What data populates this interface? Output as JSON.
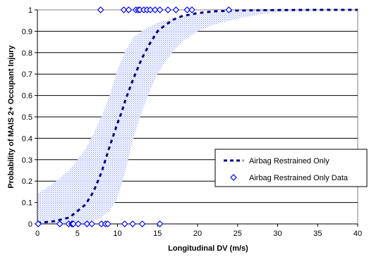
{
  "chart_data": {
    "type": "line",
    "title": "",
    "xlabel": "Longitudinal DV (m/s)",
    "ylabel": "Probability of MAIS 2+ Occupant Injury",
    "xlim": [
      0,
      40
    ],
    "ylim": [
      0,
      1
    ],
    "x_ticks": [
      "0",
      "5",
      "10",
      "15",
      "20",
      "25",
      "30",
      "35",
      "40"
    ],
    "y_ticks": [
      "0",
      "0.1",
      "0.2",
      "0.3",
      "0.4",
      "0.5",
      "0.6",
      "0.7",
      "0.8",
      "0.9",
      "1"
    ],
    "grid": "horizontal",
    "legend_position": "center-right",
    "colors": {
      "line": "#000080",
      "points": "#0000ff",
      "band": "#8fa0ff"
    },
    "series": [
      {
        "name": "Airbag Restrained Only",
        "style": "dashed-line",
        "x": [
          0,
          2,
          4,
          6,
          7,
          8,
          9,
          10,
          10.5,
          11,
          11.5,
          12,
          13,
          14,
          15,
          16,
          17,
          18,
          20,
          22,
          25,
          30,
          35,
          40
        ],
        "y": [
          0.005,
          0.012,
          0.03,
          0.09,
          0.15,
          0.24,
          0.36,
          0.47,
          0.52,
          0.58,
          0.63,
          0.68,
          0.77,
          0.84,
          0.9,
          0.93,
          0.955,
          0.97,
          0.985,
          0.993,
          0.997,
          0.999,
          1,
          1
        ]
      },
      {
        "name": "Airbag Restrained Only Data",
        "style": "markers",
        "x": [
          7.9,
          10.8,
          11.4,
          12.3,
          12.6,
          12.8,
          13.3,
          13.7,
          14.1,
          14.7,
          15.3,
          16.3,
          17.3,
          18.7,
          19.3,
          23.9,
          0.1,
          2.8,
          3.9,
          4.3,
          4.4,
          4.5,
          5.1,
          6.2,
          6.8,
          8.0,
          8.5,
          8.8,
          10.9,
          11.9,
          13.1,
          15.3
        ],
        "y": [
          1,
          1,
          1,
          1,
          1,
          1,
          1,
          1,
          1,
          1,
          1,
          1,
          1,
          1,
          1,
          1,
          0,
          0,
          0,
          0,
          0,
          0,
          0,
          0,
          0,
          0,
          0,
          0,
          0,
          0,
          0,
          0
        ]
      },
      {
        "role": "confidence-band",
        "x": [
          0,
          2,
          4,
          5,
          6,
          7,
          8,
          9,
          10,
          11,
          12,
          13,
          14,
          15,
          16,
          17,
          18,
          20,
          22,
          25,
          28,
          30,
          35,
          40
        ],
        "upper": [
          0.14,
          0.19,
          0.25,
          0.3,
          0.35,
          0.42,
          0.5,
          0.6,
          0.72,
          0.81,
          0.87,
          0.9,
          0.92,
          0.94,
          0.95,
          0.96,
          0.97,
          0.98,
          0.99,
          0.995,
          0.998,
          1,
          1,
          1
        ],
        "lower": [
          0,
          0,
          0,
          0,
          0.005,
          0.015,
          0.03,
          0.06,
          0.12,
          0.25,
          0.4,
          0.52,
          0.62,
          0.7,
          0.76,
          0.81,
          0.85,
          0.9,
          0.93,
          0.96,
          0.98,
          0.99,
          0.995,
          1
        ]
      }
    ]
  }
}
